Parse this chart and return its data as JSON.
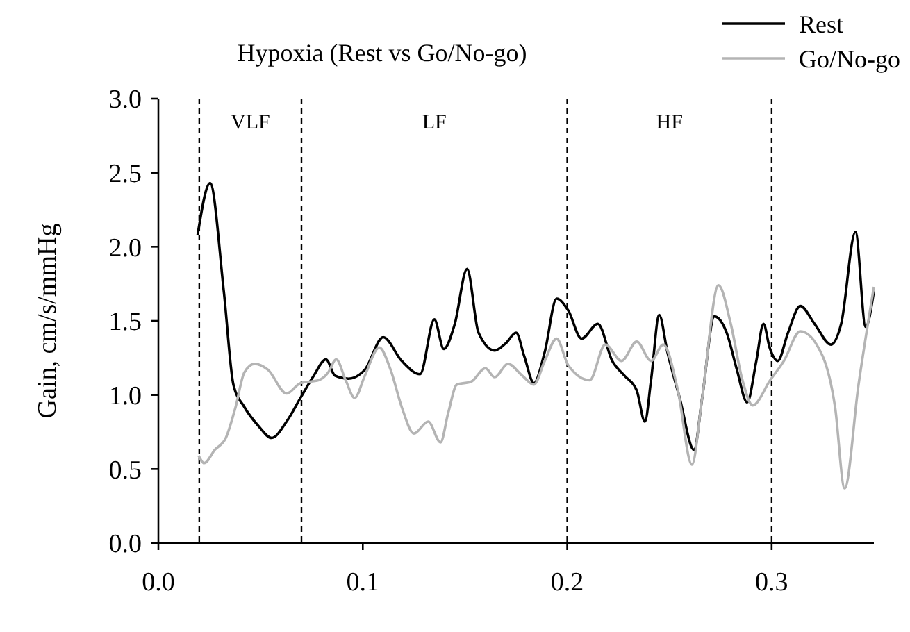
{
  "chart_data": {
    "type": "line",
    "title": "Hypoxia (Rest vs Go/No-go)",
    "ylabel": "Gain, cm/s/mmHg",
    "xlim": [
      0,
      0.35
    ],
    "xticks": [
      {
        "value": 0,
        "label": "0.0"
      },
      0.1,
      0.2,
      0.3
    ],
    "ylim": [
      0,
      3
    ],
    "yticks": [
      {
        "value": 0,
        "label": "0.0"
      },
      0.5,
      {
        "value": 1,
        "label": "1.0"
      },
      1.5,
      {
        "value": 2,
        "label": "2.0"
      },
      2.5,
      {
        "value": 3,
        "label": "3.0"
      }
    ],
    "grid": false,
    "legend": "top right",
    "marker": "none",
    "line_style": "solid",
    "ref_lines": [
      {
        "axis": "x",
        "value": 0.02,
        "color": "#000000",
        "line_style": "dashed"
      },
      {
        "axis": "x",
        "value": 0.07,
        "color": "#000000",
        "line_style": "dashed"
      },
      {
        "axis": "x",
        "value": 0.2,
        "color": "#000000",
        "line_style": "dashed"
      },
      {
        "axis": "x",
        "value": 0.3,
        "color": "#000000",
        "line_style": "dashed"
      }
    ],
    "annotations": [
      "VLF",
      "LF",
      "HF"
    ],
    "series": [
      {
        "name": "Rest",
        "color": "#000000",
        "x": [
          0.0192,
          0.0253,
          0.032,
          0.0367,
          0.042,
          0.049,
          0.0554,
          0.0627,
          0.0695,
          0.076,
          0.082,
          0.0864,
          0.093,
          0.101,
          0.11,
          0.119,
          0.128,
          0.135,
          0.1396,
          0.145,
          0.151,
          0.1566,
          0.1645,
          0.17,
          0.175,
          0.179,
          0.1837,
          0.189,
          0.1948,
          0.2005,
          0.207,
          0.215,
          0.222,
          0.228,
          0.234,
          0.238,
          0.241,
          0.245,
          0.249,
          0.255,
          0.262,
          0.266,
          0.272,
          0.278,
          0.283,
          0.288,
          0.2925,
          0.296,
          0.299,
          0.303,
          0.308,
          0.314,
          0.321,
          0.329,
          0.334,
          0.341,
          0.346,
          0.35
        ],
        "values": [
          2.08,
          2.43,
          1.7,
          1.07,
          0.92,
          0.79,
          0.71,
          0.82,
          0.98,
          1.13,
          1.24,
          1.13,
          1.11,
          1.17,
          1.39,
          1.23,
          1.14,
          1.51,
          1.31,
          1.48,
          1.85,
          1.42,
          1.3,
          1.35,
          1.42,
          1.26,
          1.08,
          1.29,
          1.65,
          1.57,
          1.38,
          1.48,
          1.23,
          1.13,
          1.03,
          0.82,
          1.1,
          1.54,
          1.29,
          0.98,
          0.63,
          0.98,
          1.53,
          1.42,
          1.17,
          0.95,
          1.23,
          1.48,
          1.32,
          1.23,
          1.42,
          1.6,
          1.48,
          1.34,
          1.48,
          2.1,
          1.46,
          1.7
        ]
      },
      {
        "name": "Go/No-go",
        "color": "#b4b4b4",
        "x": [
          0.0197,
          0.0224,
          0.0276,
          0.033,
          0.0378,
          0.042,
          0.047,
          0.0536,
          0.0627,
          0.0695,
          0.0785,
          0.083,
          0.087,
          0.0916,
          0.096,
          0.101,
          0.108,
          0.1136,
          0.119,
          0.125,
          0.132,
          0.138,
          0.1418,
          0.146,
          0.153,
          0.16,
          0.1645,
          0.171,
          0.178,
          0.1837,
          0.189,
          0.1948,
          0.2005,
          0.211,
          0.2186,
          0.2266,
          0.234,
          0.241,
          0.247,
          0.254,
          0.261,
          0.266,
          0.274,
          0.28,
          0.2857,
          0.2907,
          0.2993,
          0.306,
          0.314,
          0.325,
          0.331,
          0.3357,
          0.3425,
          0.35
        ],
        "values": [
          0.59,
          0.54,
          0.63,
          0.71,
          0.92,
          1.15,
          1.21,
          1.17,
          1.01,
          1.08,
          1.1,
          1.15,
          1.24,
          1.1,
          0.98,
          1.13,
          1.32,
          1.17,
          0.92,
          0.74,
          0.82,
          0.68,
          0.88,
          1.07,
          1.09,
          1.18,
          1.12,
          1.21,
          1.13,
          1.07,
          1.23,
          1.38,
          1.2,
          1.1,
          1.34,
          1.23,
          1.36,
          1.23,
          1.34,
          1.04,
          0.53,
          0.98,
          1.74,
          1.48,
          1.1,
          0.93,
          1.1,
          1.23,
          1.43,
          1.26,
          0.92,
          0.37,
          1.07,
          1.73
        ]
      }
    ]
  }
}
